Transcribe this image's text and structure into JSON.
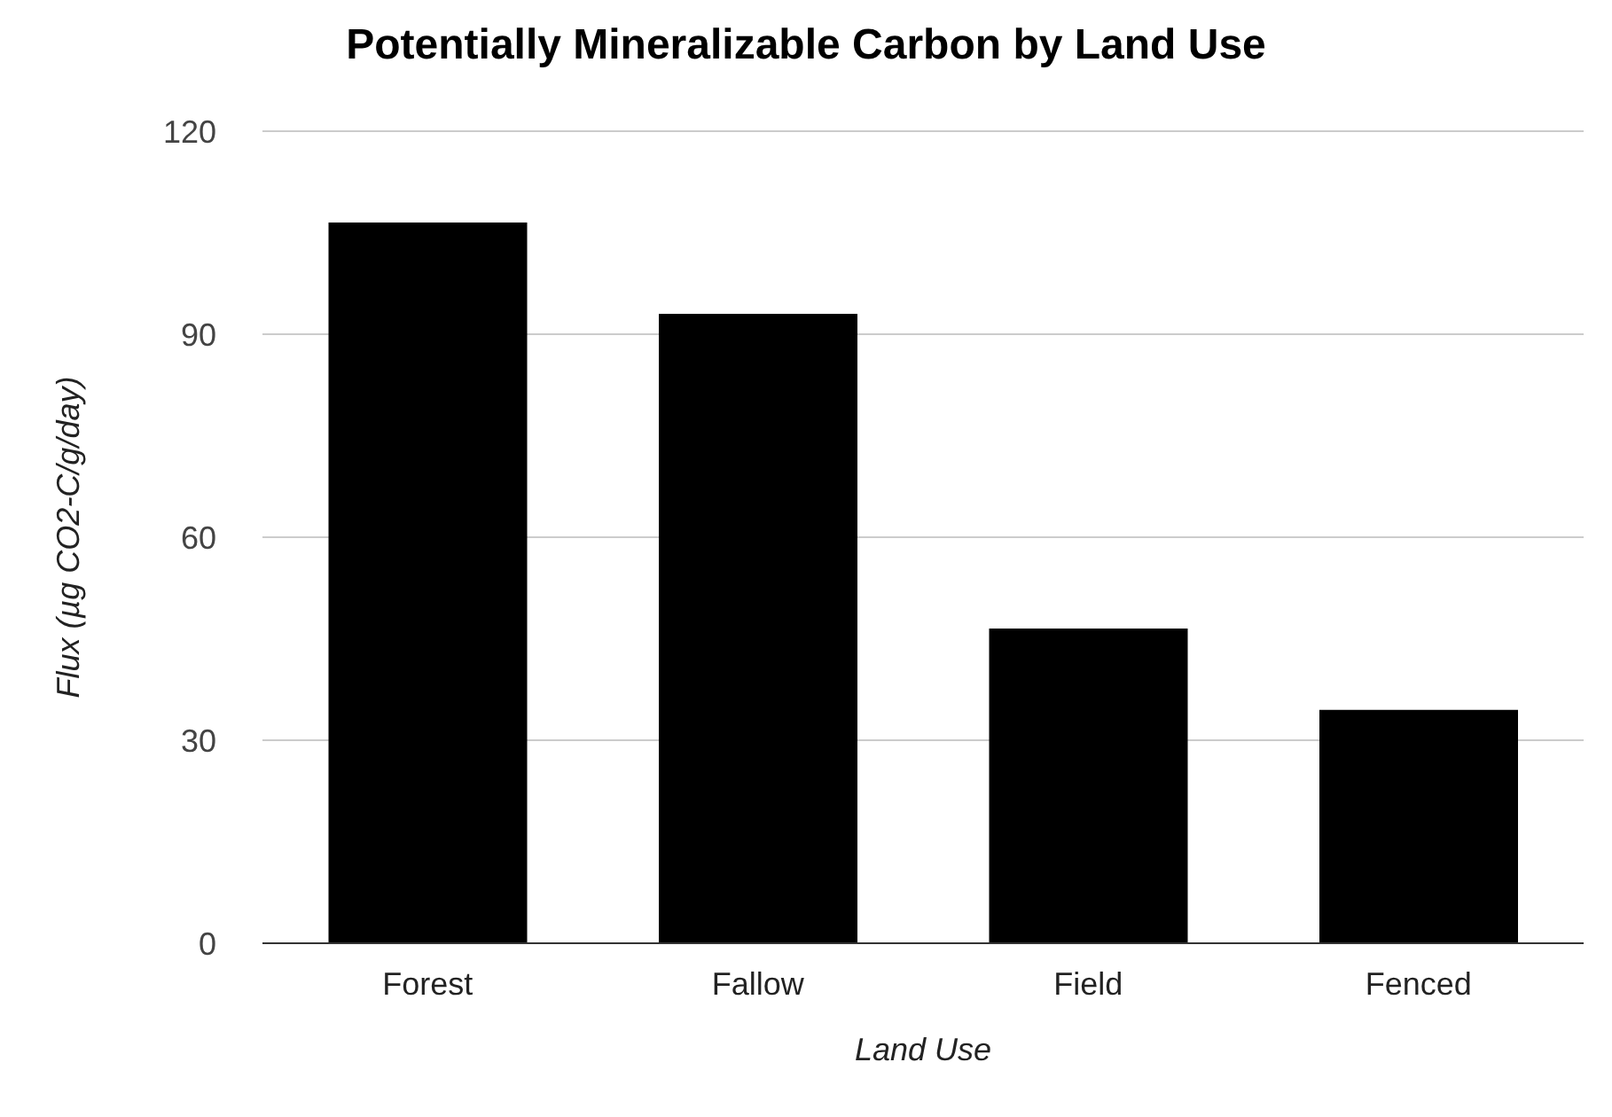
{
  "chart_data": {
    "type": "bar",
    "title": "Potentially Mineralizable Carbon by Land Use",
    "xlabel": "Land Use",
    "ylabel": "Flux (µg CO2-C/g/day)",
    "categories": [
      "Forest",
      "Fallow",
      "Field",
      "Fenced"
    ],
    "values": [
      106.5,
      93,
      46.5,
      34.5
    ],
    "color": "#000000",
    "ylim": [
      0,
      120
    ],
    "yticks": [
      0,
      30,
      60,
      90,
      120
    ],
    "grid": "y"
  }
}
